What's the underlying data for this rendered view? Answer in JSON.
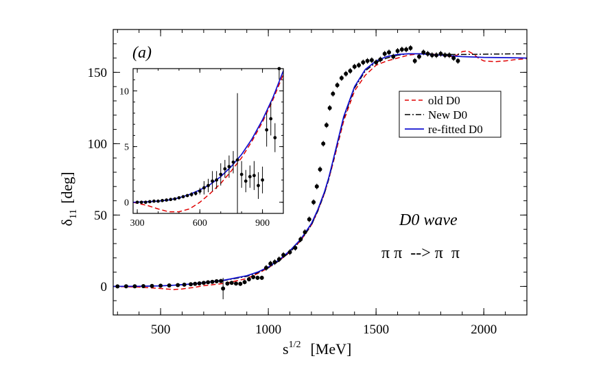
{
  "panel_label": "(a)",
  "annotation_wave": "D0 wave",
  "annotation_reaction": "π π  --> π  π",
  "chart_data": [
    {
      "type": "line",
      "xlabel": "s^1/2 [MeV]",
      "xlabel_main": "s",
      "xlabel_sup": "1/2",
      "xlabel_unit": "[MeV]",
      "ylabel": "δ11 [deg]",
      "ylabel_main": "δ",
      "ylabel_sub": "11",
      "ylabel_unit": "[deg]",
      "xlim": [
        280,
        2200
      ],
      "ylim": [
        -20,
        180
      ],
      "xticks": [
        500,
        1000,
        1500,
        2000
      ],
      "yticks": [
        0,
        50,
        100,
        150
      ],
      "grid": false,
      "legend_position": "center-right",
      "series": [
        {
          "name": "old D0",
          "style": "dashed",
          "color": "#e00000",
          "x": [
            280,
            400,
            500,
            560,
            600,
            650,
            700,
            800,
            900,
            950,
            1000,
            1050,
            1100,
            1150,
            1200,
            1230,
            1260,
            1280,
            1300,
            1350,
            1400,
            1450,
            1500,
            1550,
            1600,
            1650,
            1700,
            1750,
            1800,
            1850,
            1875,
            1900,
            1925,
            1950,
            1975,
            2000,
            2050,
            2100,
            2150,
            2200
          ],
          "y": [
            0,
            -0.5,
            -1.5,
            -2.2,
            -1.8,
            -0.8,
            0.5,
            2.2,
            5.5,
            9,
            13,
            18,
            24,
            32,
            43,
            53,
            65,
            75,
            86,
            116,
            137,
            148,
            155,
            158,
            160,
            162,
            163,
            163,
            162,
            161,
            162,
            164.5,
            165,
            163,
            160,
            158,
            157.5,
            158,
            159,
            159.5
          ]
        },
        {
          "name": "New D0",
          "style": "dashdot",
          "color": "#000000",
          "x": [
            280,
            400,
            500,
            560,
            600,
            650,
            700,
            800,
            900,
            950,
            1000,
            1050,
            1100,
            1150,
            1200,
            1230,
            1260,
            1280,
            1300,
            1350,
            1400,
            1450,
            1500,
            1550,
            1600,
            1650,
            1700,
            1750,
            1800,
            1900,
            2000,
            2100,
            2200
          ],
          "y": [
            0,
            0.1,
            0.4,
            0.8,
            1.2,
            1.8,
            2.6,
            4.3,
            7,
            9.5,
            13,
            18,
            24,
            32,
            43,
            53,
            65,
            75,
            87,
            118,
            139,
            151,
            157,
            160,
            162,
            163,
            163,
            163,
            162.5,
            162.5,
            162.7,
            162.9,
            163
          ]
        },
        {
          "name": "re-fitted D0",
          "style": "solid",
          "color": "#1010d0",
          "x": [
            280,
            400,
            500,
            560,
            600,
            650,
            700,
            800,
            900,
            950,
            1000,
            1050,
            1100,
            1150,
            1200,
            1230,
            1260,
            1280,
            1300,
            1350,
            1400,
            1450,
            1500,
            1550,
            1600,
            1650,
            1700,
            1750,
            1800,
            1900,
            2000,
            2100,
            2200
          ],
          "y": [
            0,
            0.1,
            0.4,
            0.8,
            1.2,
            1.8,
            2.6,
            4.5,
            7.5,
            10,
            13.5,
            18.5,
            25,
            33,
            44,
            54,
            66,
            76,
            88,
            119,
            140,
            152,
            158,
            161,
            162.5,
            163,
            163,
            162.5,
            162,
            161,
            160.5,
            160.3,
            160
          ]
        },
        {
          "name": "data",
          "style": "points",
          "color": "#000000",
          "x": [
            300,
            340,
            380,
            420,
            460,
            500,
            540,
            580,
            610,
            640,
            660,
            680,
            700,
            720,
            740,
            760,
            780,
            790,
            810,
            830,
            850,
            870,
            890,
            910,
            930,
            950,
            970,
            990,
            1010,
            1030,
            1050,
            1070,
            1100,
            1125,
            1150,
            1170,
            1190,
            1210,
            1225,
            1240,
            1255,
            1270,
            1285,
            1300,
            1320,
            1340,
            1360,
            1380,
            1400,
            1420,
            1440,
            1460,
            1480,
            1500,
            1520,
            1540,
            1560,
            1580,
            1600,
            1620,
            1640,
            1660,
            1680,
            1700,
            1720,
            1740,
            1760,
            1780,
            1800,
            1820,
            1840,
            1860,
            1880
          ],
          "y": [
            0,
            0.05,
            0.1,
            0.2,
            0.3,
            0.5,
            0.7,
            0.9,
            1.2,
            1.5,
            1.8,
            2.1,
            2.5,
            2.9,
            3.2,
            3.6,
            3.8,
            -1.5,
            2,
            2.5,
            2,
            1.8,
            3,
            5,
            6.5,
            6,
            6,
            13,
            16,
            17,
            19,
            22,
            24,
            27,
            33,
            38,
            47,
            59,
            70,
            82,
            100,
            113,
            125,
            135,
            141,
            146,
            149,
            151,
            154,
            155,
            157,
            158,
            158.5,
            157,
            159,
            163,
            164,
            161,
            165,
            166,
            166,
            167,
            158,
            161,
            164,
            163,
            162,
            162,
            163,
            162,
            162,
            160,
            158
          ],
          "err": [
            0.3,
            0.3,
            0.3,
            0.3,
            0.3,
            0.4,
            0.4,
            0.4,
            0.5,
            0.6,
            0.7,
            0.8,
            0.8,
            1,
            1,
            1.2,
            1.4,
            7.5,
            1.5,
            1.2,
            1.2,
            1.5,
            1.5,
            1.5,
            1.5,
            1.5,
            1.5,
            2,
            2,
            2,
            2,
            2,
            2,
            2,
            2,
            2,
            2,
            2,
            2,
            2,
            2,
            2,
            2,
            2,
            2,
            2,
            2,
            2,
            2,
            2,
            2,
            2,
            2,
            2,
            2,
            2,
            2,
            2,
            2,
            2,
            2,
            2,
            2,
            2,
            2,
            2,
            2,
            2,
            2,
            2,
            2,
            2,
            2
          ]
        }
      ]
    },
    {
      "type": "line",
      "xlim": [
        280,
        1000
      ],
      "ylim": [
        -1,
        12
      ],
      "xticks": [
        300,
        600,
        900
      ],
      "yticks": [
        0,
        5,
        10
      ],
      "grid": false,
      "series": [
        {
          "name": "old D0",
          "style": "dashed",
          "color": "#e00000",
          "x": [
            280,
            350,
            400,
            450,
            500,
            550,
            600,
            650,
            700,
            750,
            800,
            850,
            900,
            950,
            1000
          ],
          "y": [
            0,
            -0.3,
            -0.6,
            -0.85,
            -0.85,
            -0.6,
            0,
            0.8,
            1.7,
            2.8,
            4.0,
            5.5,
            7.2,
            9.2,
            11.5
          ]
        },
        {
          "name": "re-fitted D0",
          "style": "solid",
          "color": "#1010d0",
          "x": [
            280,
            350,
            400,
            450,
            500,
            550,
            600,
            650,
            700,
            750,
            800,
            850,
            900,
            950,
            1000
          ],
          "y": [
            0,
            0.05,
            0.1,
            0.2,
            0.4,
            0.7,
            1.1,
            1.6,
            2.3,
            3.2,
            4.3,
            5.7,
            7.4,
            9.4,
            11.8
          ]
        },
        {
          "name": "data",
          "style": "points",
          "color": "#000000",
          "x": [
            300,
            320,
            340,
            360,
            380,
            400,
            420,
            440,
            460,
            480,
            500,
            520,
            540,
            560,
            580,
            600,
            620,
            640,
            660,
            680,
            700,
            720,
            740,
            760,
            780,
            800,
            820,
            840,
            860,
            880,
            900,
            920,
            940,
            960,
            980
          ],
          "y": [
            0,
            0,
            0,
            0.05,
            0.1,
            0.1,
            0.15,
            0.2,
            0.25,
            0.3,
            0.4,
            0.5,
            0.6,
            0.7,
            0.8,
            1.0,
            1.3,
            1.5,
            1.9,
            2.0,
            2.5,
            3.0,
            3.2,
            3.6,
            3.8,
            2.5,
            1.9,
            2.3,
            2.4,
            1.5,
            2.0,
            6.5,
            7.5,
            5.8,
            12
          ],
          "err": [
            0.05,
            0.05,
            0.05,
            0.05,
            0.05,
            0.05,
            0.05,
            0.05,
            0.05,
            0.1,
            0.1,
            0.1,
            0.1,
            0.2,
            0.2,
            0.3,
            0.6,
            0.6,
            0.9,
            0.8,
            1.0,
            0.8,
            1.0,
            1.0,
            6.0,
            1.2,
            1.0,
            1.0,
            1.3,
            1.2,
            1.2,
            1.5,
            1.5,
            1.3,
            1.0
          ]
        }
      ]
    }
  ]
}
